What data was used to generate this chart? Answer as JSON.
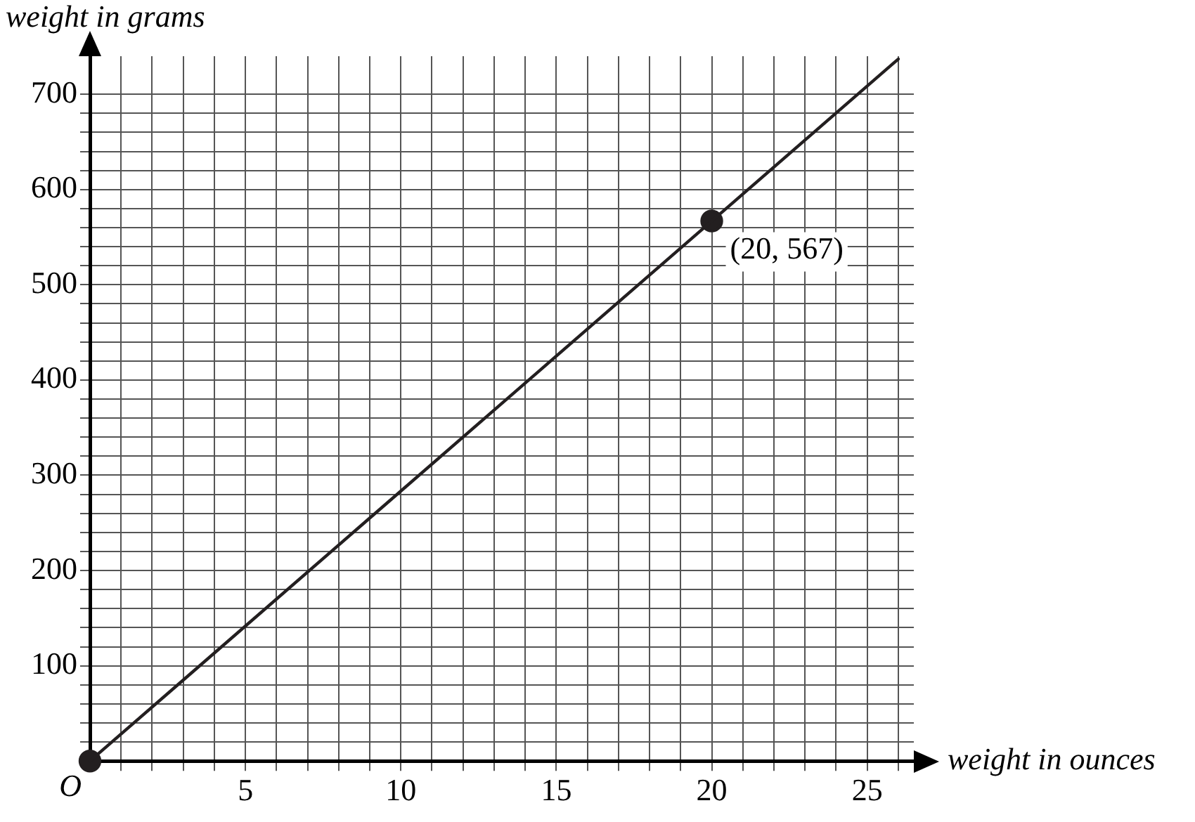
{
  "chart_data": {
    "type": "line",
    "xlabel": "weight in ounces",
    "ylabel": "weight in grams",
    "xlim": [
      0,
      26.5
    ],
    "ylim": [
      0,
      740
    ],
    "xticks": [
      {
        "value": 0,
        "label": null
      },
      {
        "value": 1,
        "label": null
      },
      {
        "value": 2,
        "label": null
      },
      {
        "value": 3,
        "label": null
      },
      {
        "value": 4,
        "label": null
      },
      5,
      {
        "value": 6,
        "label": null
      },
      {
        "value": 7,
        "label": null
      },
      {
        "value": 8,
        "label": null
      },
      {
        "value": 9,
        "label": null
      },
      10,
      {
        "value": 11,
        "label": null
      },
      {
        "value": 12,
        "label": null
      },
      {
        "value": 13,
        "label": null
      },
      {
        "value": 14,
        "label": null
      },
      15,
      {
        "value": 16,
        "label": null
      },
      {
        "value": 17,
        "label": null
      },
      {
        "value": 18,
        "label": null
      },
      {
        "value": 19,
        "label": null
      },
      20,
      {
        "value": 21,
        "label": null
      },
      {
        "value": 22,
        "label": null
      },
      {
        "value": 23,
        "label": null
      },
      {
        "value": 24,
        "label": null
      },
      25,
      {
        "value": 26,
        "label": null
      }
    ],
    "yticks": [
      {
        "value": 0,
        "label": null
      },
      {
        "value": 20,
        "label": null
      },
      {
        "value": 40,
        "label": null
      },
      {
        "value": 60,
        "label": null
      },
      {
        "value": 80,
        "label": null
      },
      100,
      {
        "value": 120,
        "label": null
      },
      {
        "value": 140,
        "label": null
      },
      {
        "value": 160,
        "label": null
      },
      {
        "value": 180,
        "label": null
      },
      200,
      {
        "value": 220,
        "label": null
      },
      {
        "value": 240,
        "label": null
      },
      {
        "value": 260,
        "label": null
      },
      {
        "value": 280,
        "label": null
      },
      300,
      {
        "value": 320,
        "label": null
      },
      {
        "value": 340,
        "label": null
      },
      {
        "value": 360,
        "label": null
      },
      {
        "value": 380,
        "label": null
      },
      400,
      {
        "value": 420,
        "label": null
      },
      {
        "value": 440,
        "label": null
      },
      {
        "value": 460,
        "label": null
      },
      {
        "value": 480,
        "label": null
      },
      500,
      {
        "value": 520,
        "label": null
      },
      {
        "value": 540,
        "label": null
      },
      {
        "value": 560,
        "label": null
      },
      {
        "value": 580,
        "label": null
      },
      600,
      {
        "value": 620,
        "label": null
      },
      {
        "value": 640,
        "label": null
      },
      {
        "value": 660,
        "label": null
      },
      {
        "value": 680,
        "label": null
      },
      700
    ],
    "grid": true,
    "legend": false,
    "series": [
      {
        "type": "line",
        "x": [
          0,
          26
        ],
        "values": [
          0,
          737
        ],
        "color": "#231f20",
        "marker": "none",
        "line_style": "solid"
      },
      {
        "type": "scatter",
        "x": [
          0,
          20
        ],
        "values": [
          0,
          567
        ],
        "color": "#231f20",
        "marker": "circle"
      }
    ],
    "annotations": [
      "O",
      {
        "text": "(20, 567)",
        "x": 20,
        "y": 567
      }
    ]
  }
}
